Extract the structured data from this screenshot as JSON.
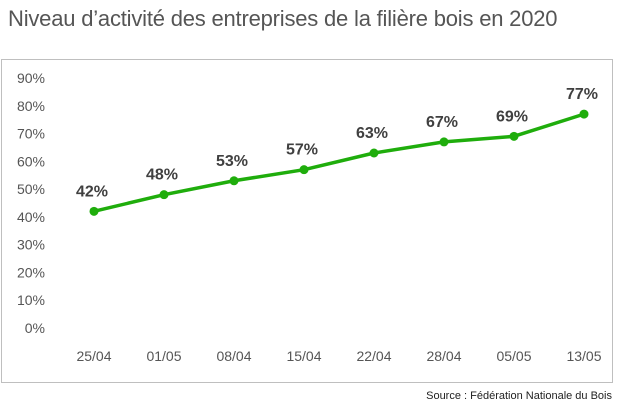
{
  "chart_data": {
    "type": "line",
    "title": "Niveau d’activité des entreprises de la filière bois en 2020",
    "source": "Source : Fédération Nationale du Bois",
    "categories": [
      "25/04",
      "01/05",
      "08/04",
      "15/04",
      "22/04",
      "28/04",
      "05/05",
      "13/05"
    ],
    "series": [
      {
        "values": [
          42,
          48,
          53,
          57,
          63,
          67,
          69,
          77
        ]
      }
    ],
    "data_labels": [
      "42%",
      "48%",
      "53%",
      "57%",
      "63%",
      "67%",
      "69%",
      "77%"
    ],
    "y_ticks": [
      "0%",
      "10%",
      "20%",
      "30%",
      "40%",
      "50%",
      "60%",
      "70%",
      "80%",
      "90%"
    ],
    "ylim": [
      0,
      90
    ],
    "grid": false,
    "line_color": "#1fad0c"
  }
}
